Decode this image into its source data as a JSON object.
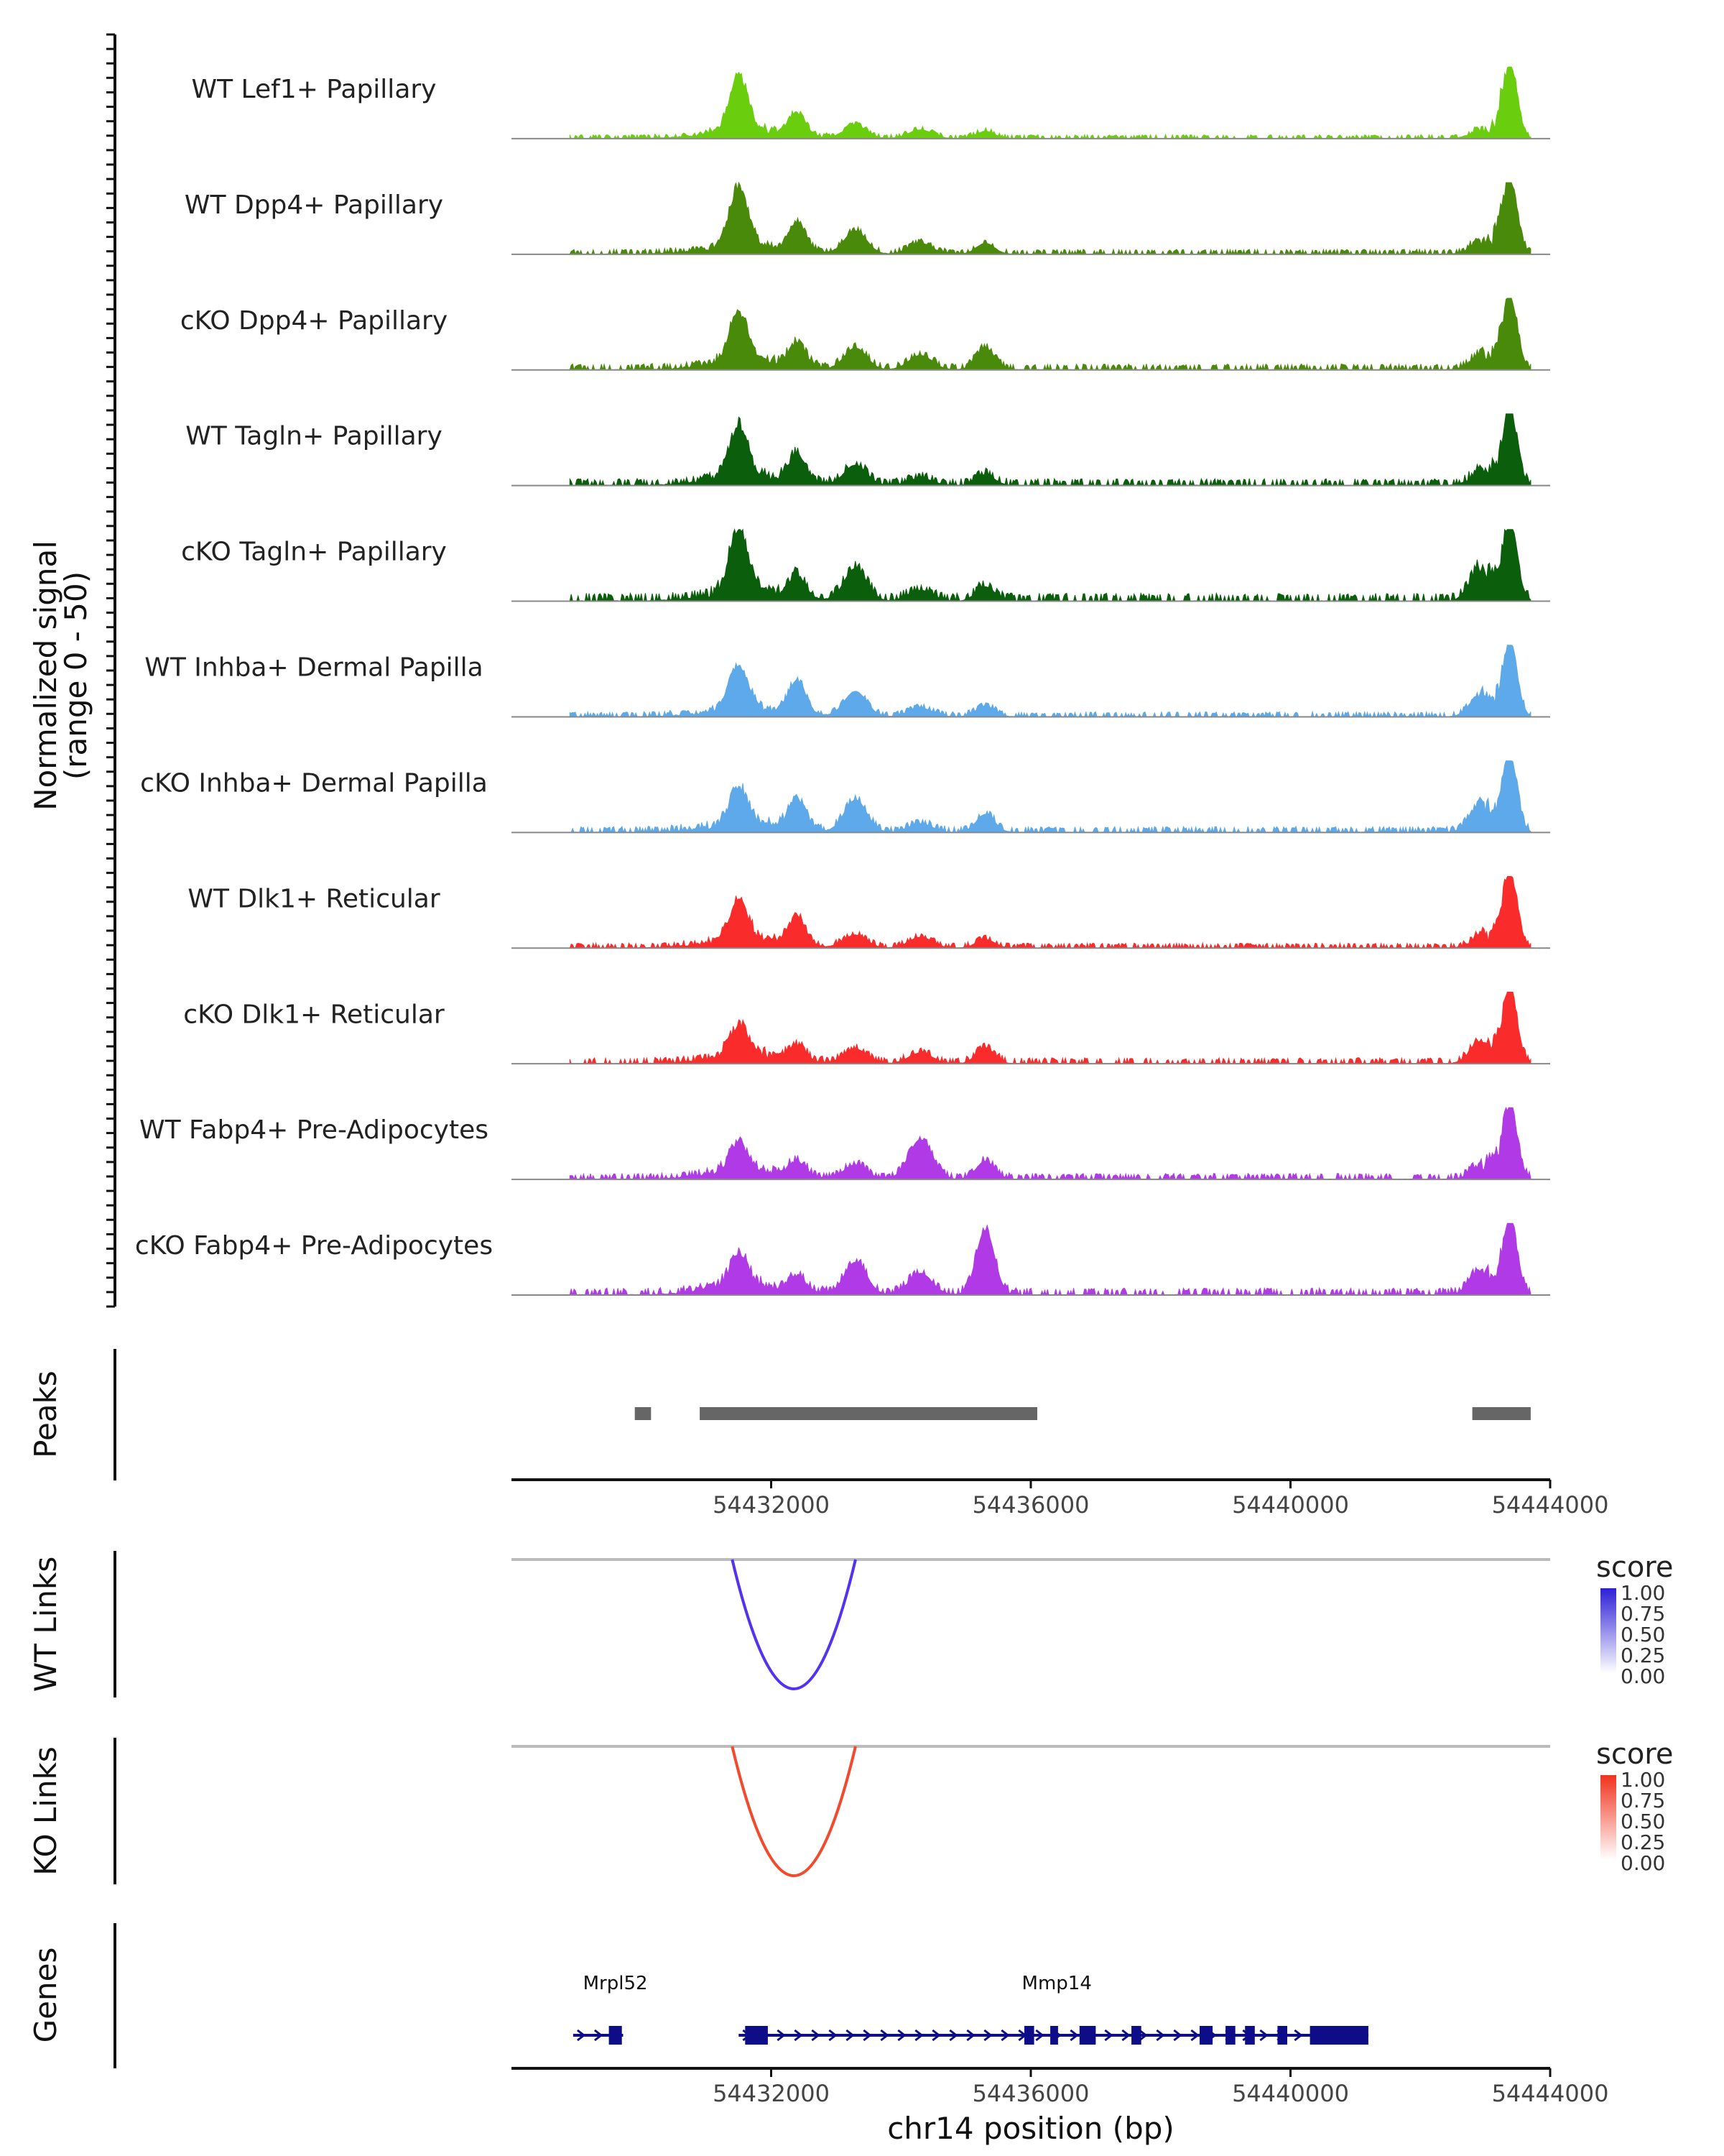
{
  "chart_data": {
    "type": "area",
    "title": "",
    "region": "chr14",
    "x_range": [
      54428000,
      54444000
    ],
    "x_ticks": [
      54432000,
      54436000,
      54440000,
      54444000
    ],
    "xlabel": "chr14 position (bp)",
    "ylabel": "Normalized signal",
    "ylabel_sub": "(range 0 - 50)",
    "ylim": [
      0,
      50
    ],
    "data_extent": [
      54428900,
      54443700
    ],
    "peak_template": [
      {
        "center": 54431500,
        "width": 140,
        "rel": 0.55
      },
      {
        "center": 54432400,
        "width": 130,
        "rel": 0.35
      },
      {
        "center": 54433300,
        "width": 170,
        "rel": 0.3
      },
      {
        "center": 54434300,
        "width": 180,
        "rel": 0.15
      },
      {
        "center": 54435300,
        "width": 140,
        "rel": 0.15
      },
      {
        "center": 54442900,
        "width": 150,
        "rel": 0.12
      },
      {
        "center": 54443380,
        "width": 110,
        "rel": 1.0
      }
    ],
    "series": [
      {
        "name": "WT Lef1+ Papillary",
        "color": "#6ACD0E",
        "peak_scale": [
          0.78,
          0.3,
          0.18,
          0.12,
          0.1,
          0.08,
          1.0
        ],
        "baseline": 0.04
      },
      {
        "name": "WT Dpp4+ Papillary",
        "color": "#4A8A0A",
        "peak_scale": [
          0.82,
          0.4,
          0.32,
          0.15,
          0.15,
          0.12,
          1.0
        ],
        "baseline": 0.05
      },
      {
        "name": "cKO Dpp4+ Papillary",
        "color": "#4A8A0A",
        "peak_scale": [
          0.68,
          0.32,
          0.3,
          0.2,
          0.3,
          0.15,
          1.0
        ],
        "baseline": 0.06
      },
      {
        "name": "WT Tagln+ Papillary",
        "color": "#0B5E0B",
        "peak_scale": [
          0.72,
          0.38,
          0.28,
          0.1,
          0.15,
          0.12,
          1.0
        ],
        "baseline": 0.07
      },
      {
        "name": "cKO Tagln+ Papillary",
        "color": "#0B5E0B",
        "peak_scale": [
          0.9,
          0.3,
          0.45,
          0.15,
          0.2,
          0.4,
          1.0
        ],
        "baseline": 0.08
      },
      {
        "name": "WT Inhba+ Dermal Papilla",
        "color": "#5DA9E9",
        "peak_scale": [
          0.58,
          0.45,
          0.35,
          0.12,
          0.15,
          0.25,
          1.0
        ],
        "baseline": 0.05
      },
      {
        "name": "cKO Inhba+ Dermal Papilla",
        "color": "#5DA9E9",
        "peak_scale": [
          0.5,
          0.4,
          0.45,
          0.12,
          0.25,
          0.35,
          1.0
        ],
        "baseline": 0.06
      },
      {
        "name": "WT Dlk1+ Reticular",
        "color": "#FA2B2B",
        "peak_scale": [
          0.55,
          0.38,
          0.18,
          0.15,
          0.12,
          0.1,
          1.0
        ],
        "baseline": 0.05
      },
      {
        "name": "cKO Dlk1+ Reticular",
        "color": "#FA2B2B",
        "peak_scale": [
          0.42,
          0.2,
          0.2,
          0.15,
          0.22,
          0.25,
          1.0
        ],
        "baseline": 0.06
      },
      {
        "name": "WT Fabp4+ Pre-Adipocytes",
        "color": "#B03AE6",
        "peak_scale": [
          0.4,
          0.2,
          0.2,
          0.55,
          0.25,
          0.12,
          1.0
        ],
        "baseline": 0.06
      },
      {
        "name": "cKO Fabp4+ Pre-Adipocytes",
        "color": "#B03AE6",
        "peak_scale": [
          0.45,
          0.22,
          0.45,
          0.3,
          0.9,
          0.3,
          1.0
        ],
        "baseline": 0.07
      }
    ],
    "peaks_track": {
      "label": "Peaks",
      "color": "#666666",
      "regions": [
        [
          54429900,
          54430150
        ],
        [
          54430900,
          54436100
        ],
        [
          54442800,
          54443700
        ]
      ]
    },
    "links_tracks": [
      {
        "label": "WT Links",
        "color": "#5533EE",
        "legend_color": "#2D1FD6",
        "start": 54431400,
        "end": 54433300,
        "score": 1.0
      },
      {
        "label": "KO Links",
        "color": "#F24A2E",
        "legend_color": "#F0321C",
        "start": 54431400,
        "end": 54433300,
        "score": 1.0
      }
    ],
    "legend": {
      "title": "score",
      "ticks": [
        "1.00",
        "0.75",
        "0.50",
        "0.25",
        "0.00"
      ]
    },
    "genes_track": {
      "label": "Genes",
      "color": "#0D0D8A",
      "genes": [
        {
          "name": "Mrpl52",
          "label_pos": 54429600,
          "start": 54428950,
          "end": 54429720,
          "exons": [
            [
              54429500,
              54429700
            ]
          ]
        },
        {
          "name": "Mmp14",
          "label_pos": 54436400,
          "start": 54431500,
          "end": 54441200,
          "exons": [
            [
              54431600,
              54431950
            ],
            [
              54435900,
              54436050
            ],
            [
              54436300,
              54436420
            ],
            [
              54436750,
              54437000
            ],
            [
              54437550,
              54437700
            ],
            [
              54438600,
              54438800
            ],
            [
              54439000,
              54439150
            ],
            [
              54439300,
              54439450
            ],
            [
              54439800,
              54439950
            ],
            [
              54440300,
              54441200
            ]
          ]
        }
      ]
    }
  }
}
